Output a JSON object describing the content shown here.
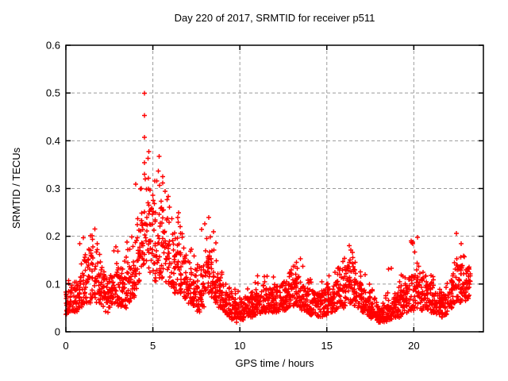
{
  "title": "Day 220 of 2017, SRMTID for receiver p511",
  "xlabel": "GPS time / hours",
  "ylabel": "SRMTID / TECUs",
  "colors": {
    "marker": "#ff0000",
    "grid": "#9b9b9b",
    "axis": "#000000",
    "background": "#ffffff",
    "text": "#000000"
  },
  "chart_data": {
    "type": "scatter",
    "marker": "plus",
    "title": "Day 220 of 2017, SRMTID for receiver p511",
    "xlabel": "GPS time / hours",
    "ylabel": "SRMTID / TECUs",
    "xlim": [
      0,
      24
    ],
    "ylim": [
      0,
      0.6
    ],
    "xticks": [
      0,
      5,
      10,
      15,
      20
    ],
    "yticks": [
      0,
      0.1,
      0.2,
      0.3,
      0.4,
      0.5,
      0.6
    ],
    "grid": true,
    "legend": false,
    "x_data_range": [
      0,
      23.3
    ],
    "peak": {
      "hour": 4.6,
      "value": 0.52
    },
    "secondary_peaks": [
      {
        "hour": 1.6,
        "value": 0.22
      },
      {
        "hour": 5.3,
        "value": 0.39
      },
      {
        "hour": 8.2,
        "value": 0.29
      },
      {
        "hour": 13.3,
        "value": 0.16
      },
      {
        "hour": 16.4,
        "value": 0.19
      },
      {
        "hour": 20.0,
        "value": 0.22
      },
      {
        "hour": 22.3,
        "value": 0.22
      }
    ],
    "envelope_bin_hours": 0.25,
    "points_per_bin": 24,
    "envelope_columns": [
      "start_hour",
      "typical_low",
      "typical_high",
      "max"
    ],
    "envelope": [
      [
        0.0,
        0.035,
        0.085,
        0.11
      ],
      [
        0.25,
        0.04,
        0.09,
        0.12
      ],
      [
        0.5,
        0.04,
        0.1,
        0.14
      ],
      [
        0.75,
        0.05,
        0.13,
        0.2
      ],
      [
        1.0,
        0.06,
        0.15,
        0.2
      ],
      [
        1.25,
        0.06,
        0.16,
        0.21
      ],
      [
        1.5,
        0.07,
        0.17,
        0.22
      ],
      [
        1.75,
        0.06,
        0.16,
        0.2
      ],
      [
        2.0,
        0.05,
        0.12,
        0.16
      ],
      [
        2.25,
        0.04,
        0.11,
        0.14
      ],
      [
        2.5,
        0.05,
        0.13,
        0.18
      ],
      [
        2.75,
        0.06,
        0.15,
        0.2
      ],
      [
        3.0,
        0.05,
        0.13,
        0.17
      ],
      [
        3.25,
        0.05,
        0.12,
        0.16
      ],
      [
        3.5,
        0.06,
        0.14,
        0.19
      ],
      [
        3.75,
        0.07,
        0.17,
        0.24
      ],
      [
        4.0,
        0.09,
        0.22,
        0.31
      ],
      [
        4.25,
        0.12,
        0.3,
        0.44
      ],
      [
        4.5,
        0.14,
        0.38,
        0.52
      ],
      [
        4.75,
        0.12,
        0.3,
        0.42
      ],
      [
        5.0,
        0.1,
        0.26,
        0.34
      ],
      [
        5.25,
        0.11,
        0.28,
        0.39
      ],
      [
        5.5,
        0.11,
        0.26,
        0.36
      ],
      [
        5.75,
        0.1,
        0.24,
        0.3
      ],
      [
        6.0,
        0.09,
        0.22,
        0.28
      ],
      [
        6.25,
        0.08,
        0.2,
        0.26
      ],
      [
        6.5,
        0.08,
        0.18,
        0.23
      ],
      [
        6.75,
        0.07,
        0.16,
        0.21
      ],
      [
        7.0,
        0.06,
        0.14,
        0.18
      ],
      [
        7.25,
        0.05,
        0.12,
        0.16
      ],
      [
        7.5,
        0.04,
        0.11,
        0.15
      ],
      [
        7.75,
        0.05,
        0.14,
        0.25
      ],
      [
        8.0,
        0.08,
        0.22,
        0.29
      ],
      [
        8.25,
        0.07,
        0.18,
        0.25
      ],
      [
        8.5,
        0.06,
        0.15,
        0.2
      ],
      [
        8.75,
        0.05,
        0.12,
        0.16
      ],
      [
        9.0,
        0.04,
        0.1,
        0.13
      ],
      [
        9.25,
        0.03,
        0.08,
        0.11
      ],
      [
        9.5,
        0.025,
        0.07,
        0.095
      ],
      [
        9.75,
        0.02,
        0.06,
        0.09
      ],
      [
        10.0,
        0.025,
        0.065,
        0.09
      ],
      [
        10.25,
        0.03,
        0.07,
        0.1
      ],
      [
        10.5,
        0.03,
        0.075,
        0.1
      ],
      [
        10.75,
        0.035,
        0.08,
        0.11
      ],
      [
        11.0,
        0.035,
        0.085,
        0.12
      ],
      [
        11.25,
        0.04,
        0.09,
        0.12
      ],
      [
        11.5,
        0.04,
        0.095,
        0.13
      ],
      [
        11.75,
        0.04,
        0.09,
        0.12
      ],
      [
        12.0,
        0.04,
        0.095,
        0.12
      ],
      [
        12.25,
        0.045,
        0.1,
        0.13
      ],
      [
        12.5,
        0.045,
        0.105,
        0.14
      ],
      [
        12.75,
        0.05,
        0.11,
        0.14
      ],
      [
        13.0,
        0.05,
        0.115,
        0.15
      ],
      [
        13.25,
        0.05,
        0.12,
        0.16
      ],
      [
        13.5,
        0.045,
        0.105,
        0.14
      ],
      [
        13.75,
        0.04,
        0.095,
        0.12
      ],
      [
        14.0,
        0.035,
        0.085,
        0.11
      ],
      [
        14.25,
        0.03,
        0.08,
        0.1
      ],
      [
        14.5,
        0.03,
        0.08,
        0.11
      ],
      [
        14.75,
        0.035,
        0.085,
        0.11
      ],
      [
        15.0,
        0.04,
        0.09,
        0.12
      ],
      [
        15.25,
        0.04,
        0.095,
        0.13
      ],
      [
        15.5,
        0.045,
        0.105,
        0.14
      ],
      [
        15.75,
        0.05,
        0.115,
        0.15
      ],
      [
        16.0,
        0.055,
        0.13,
        0.17
      ],
      [
        16.25,
        0.06,
        0.15,
        0.19
      ],
      [
        16.5,
        0.055,
        0.135,
        0.18
      ],
      [
        16.75,
        0.05,
        0.115,
        0.15
      ],
      [
        17.0,
        0.04,
        0.09,
        0.12
      ],
      [
        17.25,
        0.03,
        0.075,
        0.1
      ],
      [
        17.5,
        0.025,
        0.065,
        0.09
      ],
      [
        17.75,
        0.02,
        0.055,
        0.08
      ],
      [
        18.0,
        0.02,
        0.05,
        0.075
      ],
      [
        18.25,
        0.02,
        0.055,
        0.08
      ],
      [
        18.5,
        0.025,
        0.06,
        0.14
      ],
      [
        18.75,
        0.03,
        0.07,
        0.1
      ],
      [
        19.0,
        0.03,
        0.08,
        0.11
      ],
      [
        19.25,
        0.035,
        0.085,
        0.12
      ],
      [
        19.5,
        0.04,
        0.09,
        0.13
      ],
      [
        19.75,
        0.045,
        0.11,
        0.21
      ],
      [
        20.0,
        0.05,
        0.12,
        0.22
      ],
      [
        20.25,
        0.045,
        0.11,
        0.15
      ],
      [
        20.5,
        0.05,
        0.11,
        0.15
      ],
      [
        20.75,
        0.045,
        0.1,
        0.13
      ],
      [
        21.0,
        0.04,
        0.09,
        0.12
      ],
      [
        21.25,
        0.035,
        0.085,
        0.11
      ],
      [
        21.5,
        0.03,
        0.08,
        0.1
      ],
      [
        21.75,
        0.035,
        0.085,
        0.12
      ],
      [
        22.0,
        0.05,
        0.12,
        0.18
      ],
      [
        22.25,
        0.06,
        0.15,
        0.22
      ],
      [
        22.5,
        0.06,
        0.14,
        0.19
      ],
      [
        22.75,
        0.065,
        0.135,
        0.17
      ],
      [
        23.0,
        0.07,
        0.125,
        0.15
      ]
    ]
  }
}
